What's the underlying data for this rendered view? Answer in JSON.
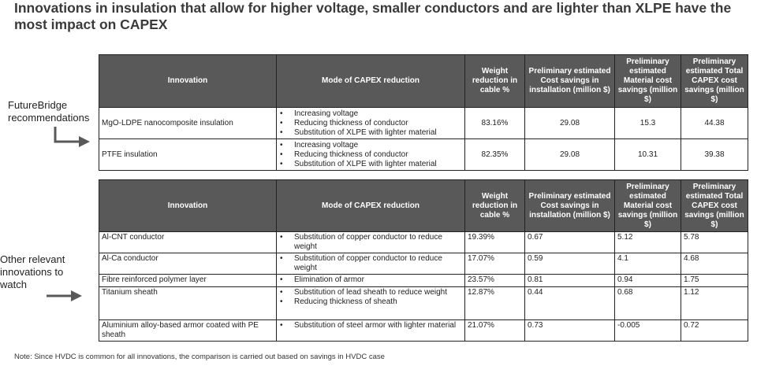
{
  "title": "Innovations in insulation that allow for higher voltage, smaller conductors and are lighter than XLPE have the most impact on CAPEX",
  "labels": {
    "futurebridge": "FutureBridge recommendations",
    "other": "Other relevant innovations to watch"
  },
  "table_headers": {
    "innovation": "Innovation",
    "mode": "Mode of CAPEX reduction",
    "weight": "Weight reduction in cable %",
    "installation": "Preliminary estimated Cost savings in installation (million $)",
    "material": "Preliminary estimated Material cost savings (million $)",
    "total": "Preliminary estimated Total CAPEX cost savings (million $)"
  },
  "recommended": [
    {
      "innovation": "MgO-LDPE nanocomposite insulation",
      "modes": [
        "Increasing voltage",
        "Reducing thickness of conductor",
        "Substitution of XLPE with lighter material"
      ],
      "weight": "83.16%",
      "installation": "29.08",
      "material": "15.3",
      "total": "44.38"
    },
    {
      "innovation": "PTFE insulation",
      "modes": [
        "Increasing voltage",
        "Reducing thickness of conductor",
        "Substitution of XLPE with lighter material"
      ],
      "weight": "82.35%",
      "installation": "29.08",
      "material": "10.31",
      "total": "39.38"
    }
  ],
  "other": [
    {
      "innovation": "Al-CNT conductor",
      "modes": [
        "Substitution of copper conductor to reduce weight"
      ],
      "weight": "19.39%",
      "installation": "0.67",
      "material": "5.12",
      "total": "5.78"
    },
    {
      "innovation": "Al-Ca conductor",
      "modes": [
        "Substitution of copper conductor to reduce weight"
      ],
      "weight": "17.07%",
      "installation": "0.59",
      "material": "4.1",
      "total": "4.68"
    },
    {
      "innovation": "Fibre reinforced polymer layer",
      "modes": [
        "Elimination of armor"
      ],
      "weight": "23.57%",
      "installation": "0.81",
      "material": "0.94",
      "total": "1.75"
    },
    {
      "innovation": "Titanium sheath",
      "modes": [
        "Substitution of lead sheath to reduce weight",
        "Reducing thickness of sheath"
      ],
      "weight": "12.87%",
      "installation": "0.44",
      "material": "0.68",
      "total": "1.12"
    },
    {
      "innovation": "Aluminium alloy-based armor coated with PE sheath",
      "modes": [
        "Substitution of steel armor with lighter material"
      ],
      "weight": "21.07%",
      "installation": "0.73",
      "material": "-0.005",
      "total": "0.72"
    }
  ],
  "note": "Note: Since HVDC is common for all innovations, the comparison is carried out based on savings in HVDC case",
  "colors": {
    "header_bg": "#595959",
    "arrow": "#595959"
  }
}
